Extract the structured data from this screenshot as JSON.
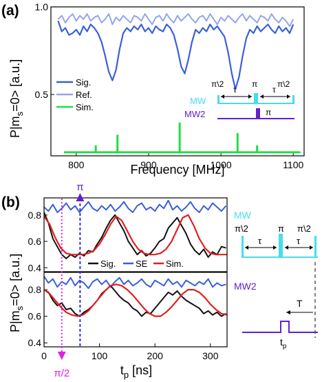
{
  "panel_a": {
    "label": "(a)",
    "legend": [
      "Sig.",
      "Ref.",
      "Sim."
    ],
    "seq": {
      "mw": "MW",
      "mw2": "MW2",
      "halfpi": "π\\2",
      "pi": "π",
      "tau": "τ"
    }
  },
  "panel_b": {
    "label": "(b)",
    "top_legend": [
      "Sig.",
      "SE",
      "Sim."
    ],
    "marker_pi": "π",
    "marker_half": "π/2",
    "seq": {
      "mw": "MW",
      "mw2": "MW2",
      "halfpi": "π\\2",
      "pi": "π",
      "tau": "τ",
      "T": "T",
      "tp": "t",
      "tp_sub": "p"
    }
  },
  "colors": {
    "sig_a": "#3a5fd9",
    "ref_a": "#93a5ea",
    "sim_a": "#22dd44",
    "sig_b": "#111111",
    "se_b": "#3a5fd9",
    "sim_b": "#e02020",
    "mw": "#44ddee",
    "mw2": "#6020d0",
    "pi_marker": "#3030e0",
    "half_marker": "#e020e0"
  },
  "chart_data": [
    {
      "type": "line",
      "panel": "(a)",
      "xlabel": "Frequency [MHz]",
      "ylabel": "P|m_s=0> [a.u.]",
      "ylabel_parts": [
        "P|m",
        "s",
        "=0> [a.u.]"
      ],
      "xlim": [
        765,
        1115
      ],
      "ylim": [
        0.15,
        1.0
      ],
      "xticks": [
        800,
        900,
        1000,
        1100
      ],
      "yticks": [
        0.5,
        1.0
      ],
      "ytick_labels": [
        "0.5",
        "1.0"
      ],
      "series": [
        {
          "name": "Ref.",
          "x": [
            775,
            780,
            785,
            790,
            795,
            800,
            805,
            810,
            815,
            820,
            825,
            830,
            835,
            840,
            845,
            850,
            855,
            860,
            865,
            870,
            875,
            880,
            885,
            890,
            895,
            900,
            905,
            910,
            915,
            920,
            925,
            930,
            935,
            940,
            945,
            950,
            955,
            960,
            965,
            970,
            975,
            980,
            985,
            990,
            995,
            1000,
            1005,
            1010,
            1015,
            1020,
            1025,
            1030,
            1035,
            1040,
            1045,
            1050,
            1055,
            1060,
            1065,
            1070,
            1075,
            1080,
            1085,
            1090,
            1095,
            1100
          ],
          "y": [
            0.93,
            0.95,
            0.91,
            0.94,
            0.96,
            0.92,
            0.95,
            0.93,
            0.96,
            0.92,
            0.94,
            0.95,
            0.91,
            0.93,
            0.96,
            0.9,
            0.94,
            0.92,
            0.95,
            0.93,
            0.91,
            0.95,
            0.94,
            0.92,
            0.96,
            0.93,
            0.9,
            0.94,
            0.95,
            0.92,
            0.96,
            0.93,
            0.91,
            0.95,
            0.92,
            0.94,
            0.96,
            0.93,
            0.91,
            0.94,
            0.95,
            0.92,
            0.96,
            0.93,
            0.9,
            0.94,
            0.92,
            0.95,
            0.93,
            0.91,
            0.94,
            0.96,
            0.92,
            0.95,
            0.93,
            0.91,
            0.95,
            0.94,
            0.92,
            0.96,
            0.93,
            0.91,
            0.94,
            0.92,
            0.89,
            0.93
          ]
        },
        {
          "name": "Sig.",
          "x": [
            775,
            780,
            785,
            790,
            795,
            800,
            805,
            810,
            815,
            820,
            825,
            830,
            835,
            840,
            845,
            850,
            855,
            860,
            865,
            870,
            875,
            880,
            885,
            890,
            895,
            900,
            905,
            910,
            915,
            920,
            925,
            930,
            935,
            940,
            945,
            950,
            955,
            960,
            965,
            970,
            975,
            980,
            985,
            990,
            995,
            1000,
            1005,
            1010,
            1015,
            1020,
            1025,
            1030,
            1035,
            1040,
            1045,
            1050,
            1055,
            1060,
            1065,
            1070,
            1075,
            1080,
            1085,
            1090,
            1095,
            1100
          ],
          "y": [
            0.92,
            0.86,
            0.88,
            0.84,
            0.85,
            0.87,
            0.84,
            0.89,
            0.86,
            0.9,
            0.88,
            0.85,
            0.8,
            0.72,
            0.63,
            0.58,
            0.64,
            0.76,
            0.85,
            0.88,
            0.86,
            0.89,
            0.87,
            0.9,
            0.86,
            0.88,
            0.85,
            0.89,
            0.87,
            0.86,
            0.9,
            0.88,
            0.84,
            0.76,
            0.66,
            0.62,
            0.7,
            0.8,
            0.87,
            0.85,
            0.88,
            0.86,
            0.9,
            0.87,
            0.89,
            0.86,
            0.83,
            0.74,
            0.62,
            0.53,
            0.6,
            0.72,
            0.82,
            0.87,
            0.85,
            0.89,
            0.86,
            0.88,
            0.9,
            0.87,
            0.85,
            0.89,
            0.86,
            0.88,
            0.85,
            0.9
          ]
        },
        {
          "name": "Sim.",
          "baseline": 0.17,
          "peaks": [
            {
              "x": 827,
              "y": 0.21
            },
            {
              "x": 857,
              "y": 0.27
            },
            {
              "x": 943,
              "y": 0.34
            },
            {
              "x": 1023,
              "y": 0.28
            },
            {
              "x": 1050,
              "y": 0.21
            }
          ]
        }
      ]
    },
    {
      "type": "line",
      "panel": "(b) top",
      "xlim": [
        0,
        330
      ],
      "ylim": [
        0.37,
        0.93
      ],
      "yticks": [
        0.4,
        0.6,
        0.8
      ],
      "ytick_labels": [
        "0.4",
        "0.6",
        "0.8"
      ],
      "series": [
        {
          "name": "SE",
          "x": [
            0,
            8,
            16,
            24,
            32,
            40,
            48,
            56,
            64,
            72,
            80,
            88,
            96,
            104,
            112,
            120,
            128,
            136,
            144,
            152,
            160,
            168,
            176,
            184,
            192,
            200,
            208,
            216,
            224,
            232,
            240,
            248,
            256,
            264,
            272,
            280,
            288,
            296,
            304,
            312,
            320,
            328
          ],
          "y": [
            0.86,
            0.83,
            0.88,
            0.82,
            0.85,
            0.89,
            0.84,
            0.87,
            0.82,
            0.86,
            0.9,
            0.85,
            0.83,
            0.87,
            0.84,
            0.88,
            0.83,
            0.86,
            0.9,
            0.85,
            0.82,
            0.87,
            0.89,
            0.84,
            0.86,
            0.83,
            0.88,
            0.85,
            0.91,
            0.84,
            0.87,
            0.83,
            0.86,
            0.9,
            0.85,
            0.82,
            0.87,
            0.84,
            0.89,
            0.86,
            0.83,
            0.87
          ]
        },
        {
          "name": "Sig.",
          "x": [
            0,
            8,
            16,
            24,
            32,
            40,
            48,
            56,
            64,
            72,
            80,
            88,
            96,
            104,
            112,
            120,
            128,
            136,
            144,
            152,
            160,
            168,
            176,
            184,
            192,
            200,
            208,
            216,
            224,
            232,
            240,
            248,
            256,
            264,
            272,
            280,
            288,
            296,
            304,
            312,
            320,
            328
          ],
          "y": [
            0.82,
            0.74,
            0.62,
            0.56,
            0.5,
            0.47,
            0.5,
            0.48,
            0.51,
            0.49,
            0.53,
            0.52,
            0.58,
            0.63,
            0.7,
            0.76,
            0.8,
            0.74,
            0.68,
            0.6,
            0.55,
            0.5,
            0.53,
            0.49,
            0.51,
            0.55,
            0.6,
            0.62,
            0.7,
            0.74,
            0.78,
            0.72,
            0.66,
            0.58,
            0.53,
            0.5,
            0.54,
            0.48,
            0.52,
            0.5,
            0.56,
            0.55
          ]
        },
        {
          "name": "Sim.",
          "x": [
            0,
            10,
            20,
            30,
            40,
            50,
            60,
            70,
            80,
            90,
            100,
            110,
            120,
            130,
            140,
            150,
            160,
            170,
            180,
            190,
            200,
            210,
            220,
            230,
            240,
            250,
            260,
            270,
            280,
            290,
            300,
            310,
            320,
            330
          ],
          "y": [
            0.79,
            0.73,
            0.63,
            0.55,
            0.51,
            0.5,
            0.5,
            0.5,
            0.51,
            0.53,
            0.58,
            0.65,
            0.73,
            0.79,
            0.76,
            0.68,
            0.6,
            0.54,
            0.51,
            0.5,
            0.5,
            0.51,
            0.54,
            0.6,
            0.69,
            0.78,
            0.8,
            0.72,
            0.62,
            0.55,
            0.51,
            0.5,
            0.5,
            0.5
          ]
        }
      ]
    },
    {
      "type": "line",
      "panel": "(b) bottom",
      "xlabel": "t_p [ns]",
      "xlabel_parts": [
        "t",
        "p",
        " [ns]"
      ],
      "ylabel": "P|m_s=0> [a.u.]",
      "ylabel_parts": [
        "P|m",
        "s",
        "=0> [a.u.]"
      ],
      "xlim": [
        0,
        330
      ],
      "ylim": [
        0.37,
        0.93
      ],
      "xticks": [
        0,
        100,
        200,
        300
      ],
      "yticks": [
        0.4,
        0.6,
        0.8
      ],
      "ytick_labels": [
        "0.4",
        "0.6",
        "0.8"
      ],
      "series": [
        {
          "name": "SE",
          "x": [
            0,
            8,
            16,
            24,
            32,
            40,
            48,
            56,
            64,
            72,
            80,
            88,
            96,
            104,
            112,
            120,
            128,
            136,
            144,
            152,
            160,
            168,
            176,
            184,
            192,
            200,
            208,
            216,
            224,
            232,
            240,
            248,
            256,
            264,
            272,
            280,
            288,
            296,
            304,
            312,
            320,
            328
          ],
          "y": [
            0.9,
            0.85,
            0.88,
            0.82,
            0.86,
            0.84,
            0.89,
            0.83,
            0.87,
            0.85,
            0.81,
            0.86,
            0.88,
            0.84,
            0.87,
            0.82,
            0.86,
            0.89,
            0.84,
            0.87,
            0.83,
            0.85,
            0.88,
            0.84,
            0.82,
            0.87,
            0.85,
            0.83,
            0.88,
            0.84,
            0.86,
            0.82,
            0.87,
            0.85,
            0.83,
            0.86,
            0.84,
            0.88,
            0.82,
            0.85,
            0.83,
            0.84
          ]
        },
        {
          "name": "Sig.",
          "x": [
            0,
            8,
            16,
            24,
            32,
            40,
            48,
            56,
            64,
            72,
            80,
            88,
            96,
            104,
            112,
            120,
            128,
            136,
            144,
            152,
            160,
            168,
            176,
            184,
            192,
            200,
            208,
            216,
            224,
            232,
            240,
            248,
            256,
            264,
            272,
            280,
            288,
            296,
            304,
            312,
            320,
            328
          ],
          "y": [
            0.8,
            0.78,
            0.72,
            0.68,
            0.7,
            0.65,
            0.66,
            0.62,
            0.6,
            0.63,
            0.65,
            0.68,
            0.72,
            0.77,
            0.8,
            0.83,
            0.79,
            0.75,
            0.72,
            0.7,
            0.66,
            0.64,
            0.6,
            0.63,
            0.62,
            0.66,
            0.7,
            0.74,
            0.78,
            0.76,
            0.79,
            0.75,
            0.72,
            0.7,
            0.68,
            0.66,
            0.62,
            0.64,
            0.61,
            0.63,
            0.6,
            0.62
          ]
        },
        {
          "name": "Sim.",
          "x": [
            0,
            10,
            20,
            30,
            40,
            50,
            60,
            70,
            80,
            90,
            100,
            110,
            120,
            130,
            140,
            150,
            160,
            170,
            180,
            190,
            200,
            210,
            220,
            230,
            240,
            250,
            260,
            270,
            280,
            290,
            300,
            310,
            320,
            330
          ],
          "y": [
            0.8,
            0.77,
            0.72,
            0.67,
            0.63,
            0.61,
            0.6,
            0.61,
            0.64,
            0.69,
            0.74,
            0.79,
            0.83,
            0.84,
            0.83,
            0.8,
            0.76,
            0.71,
            0.66,
            0.62,
            0.6,
            0.6,
            0.63,
            0.67,
            0.72,
            0.77,
            0.8,
            0.8,
            0.78,
            0.74,
            0.69,
            0.65,
            0.62,
            0.61
          ]
        }
      ]
    }
  ]
}
